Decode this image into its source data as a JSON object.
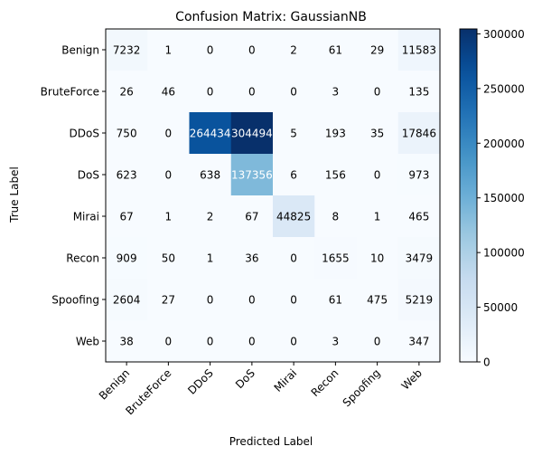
{
  "chart_data": {
    "type": "heatmap",
    "title": "Confusion Matrix: GaussianNB",
    "xlabel": "Predicted Label",
    "ylabel": "True Label",
    "x_categories": [
      "Benign",
      "BruteForce",
      "DDoS",
      "DoS",
      "Mirai",
      "Recon",
      "Spoofing",
      "Web"
    ],
    "y_categories": [
      "Benign",
      "BruteForce",
      "DDoS",
      "DoS",
      "Mirai",
      "Recon",
      "Spoofing",
      "Web"
    ],
    "matrix": [
      [
        7232,
        1,
        0,
        0,
        2,
        61,
        29,
        11583
      ],
      [
        26,
        46,
        0,
        0,
        0,
        3,
        0,
        135
      ],
      [
        750,
        0,
        264434,
        304494,
        5,
        193,
        35,
        17846
      ],
      [
        623,
        0,
        638,
        137356,
        6,
        156,
        0,
        973
      ],
      [
        67,
        1,
        2,
        67,
        44825,
        8,
        1,
        465
      ],
      [
        909,
        50,
        1,
        36,
        0,
        1655,
        10,
        3479
      ],
      [
        2604,
        27,
        0,
        0,
        0,
        61,
        475,
        5219
      ],
      [
        38,
        0,
        0,
        0,
        0,
        3,
        0,
        347
      ]
    ],
    "colormap": "Blues",
    "colorbar": {
      "vmin": 0,
      "vmax": 304494,
      "ticks": [
        0,
        50000,
        100000,
        150000,
        200000,
        250000,
        300000
      ]
    },
    "grid": false
  }
}
